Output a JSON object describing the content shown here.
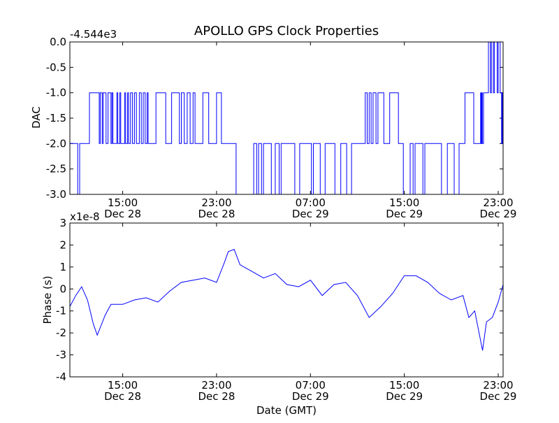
{
  "title": "APOLLO GPS Clock Properties",
  "chart_data": [
    {
      "type": "line",
      "ylabel": "DAC",
      "xlabel": "",
      "offset_label": "-4.544e3",
      "ylim": [
        -3.0,
        0.0
      ],
      "yticks": [
        {
          "v": 0.0,
          "label": "0.0"
        },
        {
          "v": -0.5,
          "label": "-0.5"
        },
        {
          "v": -1.0,
          "label": "-1.0"
        },
        {
          "v": -1.5,
          "label": "-1.5"
        },
        {
          "v": -2.0,
          "label": "-2.0"
        },
        {
          "v": -2.5,
          "label": "-2.5"
        },
        {
          "v": -3.0,
          "label": "-3.0"
        }
      ],
      "xticks": [
        {
          "t": "Dec 28 15:00",
          "time": "15:00",
          "date": "Dec 28"
        },
        {
          "t": "Dec 28 23:00",
          "time": "23:00",
          "date": "Dec 28"
        },
        {
          "t": "Dec 29 07:00",
          "time": "07:00",
          "date": "Dec 29"
        },
        {
          "t": "Dec 29 15:00",
          "time": "15:00",
          "date": "Dec 29"
        },
        {
          "t": "Dec 29 23:00",
          "time": "23:00",
          "date": "Dec 29"
        }
      ],
      "xlim": [
        "Dec 28 10:30",
        "Dec 29 23:25"
      ],
      "series": [
        {
          "color": "#0000ff",
          "points": [
            [
              "Dec 28 10:30",
              -2.0
            ],
            [
              "Dec 28 11:00",
              -2.0
            ],
            [
              "Dec 28 11:10",
              -3.0
            ],
            [
              "Dec 28 11:20",
              -2.0
            ],
            [
              "Dec 28 12:00",
              -2.0
            ],
            [
              "Dec 28 12:10",
              -1.0
            ],
            [
              "Dec 28 12:50",
              -1.0
            ],
            [
              "Dec 28 13:00",
              -2.0
            ],
            [
              "Dec 28 13:05",
              -1.0
            ],
            [
              "Dec 28 13:15",
              -2.0
            ],
            [
              "Dec 28 13:20",
              -1.0
            ],
            [
              "Dec 28 13:35",
              -2.0
            ],
            [
              "Dec 28 13:45",
              -1.0
            ],
            [
              "Dec 28 14:00",
              -2.0
            ],
            [
              "Dec 28 14:05",
              -1.0
            ],
            [
              "Dec 28 14:10",
              -2.0
            ],
            [
              "Dec 28 14:30",
              -1.0
            ],
            [
              "Dec 28 14:35",
              -2.0
            ],
            [
              "Dec 28 14:45",
              -1.0
            ],
            [
              "Dec 28 14:50",
              -2.0
            ],
            [
              "Dec 28 15:10",
              -1.0
            ],
            [
              "Dec 28 15:15",
              -2.0
            ],
            [
              "Dec 28 15:25",
              -1.0
            ],
            [
              "Dec 28 15:30",
              -2.0
            ],
            [
              "Dec 28 15:40",
              -1.0
            ],
            [
              "Dec 28 15:50",
              -2.0
            ],
            [
              "Dec 28 16:00",
              -1.0
            ],
            [
              "Dec 28 16:10",
              -2.0
            ],
            [
              "Dec 28 16:25",
              -1.0
            ],
            [
              "Dec 28 16:35",
              -2.0
            ],
            [
              "Dec 28 16:45",
              -1.0
            ],
            [
              "Dec 28 16:55",
              -2.0
            ],
            [
              "Dec 28 17:05",
              -1.0
            ],
            [
              "Dec 28 17:10",
              -2.0
            ],
            [
              "Dec 28 17:40",
              -2.0
            ],
            [
              "Dec 28 17:50",
              -1.0
            ],
            [
              "Dec 28 18:30",
              -1.0
            ],
            [
              "Dec 28 18:40",
              -2.0
            ],
            [
              "Dec 28 19:00",
              -2.0
            ],
            [
              "Dec 28 19:10",
              -1.0
            ],
            [
              "Dec 28 19:40",
              -1.0
            ],
            [
              "Dec 28 19:50",
              -2.0
            ],
            [
              "Dec 28 20:00",
              -1.0
            ],
            [
              "Dec 28 20:15",
              -2.0
            ],
            [
              "Dec 28 20:30",
              -1.0
            ],
            [
              "Dec 28 20:45",
              -2.0
            ],
            [
              "Dec 28 21:00",
              -1.0
            ],
            [
              "Dec 28 21:10",
              -2.0
            ],
            [
              "Dec 28 21:40",
              -2.0
            ],
            [
              "Dec 28 21:50",
              -1.0
            ],
            [
              "Dec 28 22:10",
              -1.0
            ],
            [
              "Dec 28 22:20",
              -2.0
            ],
            [
              "Dec 28 22:50",
              -2.0
            ],
            [
              "Dec 28 23:00",
              -1.0
            ],
            [
              "Dec 28 23:15",
              -1.0
            ],
            [
              "Dec 28 23:25",
              -2.0
            ],
            [
              "Dec 29 00:30",
              -2.0
            ],
            [
              "Dec 29 00:40",
              -3.0
            ],
            [
              "Dec 29 02:00",
              -3.0
            ],
            [
              "Dec 29 02:10",
              -2.0
            ],
            [
              "Dec 29 02:25",
              -3.0
            ],
            [
              "Dec 29 02:35",
              -2.0
            ],
            [
              "Dec 29 02:50",
              -3.0
            ],
            [
              "Dec 29 03:00",
              -2.0
            ],
            [
              "Dec 29 03:30",
              -2.0
            ],
            [
              "Dec 29 03:40",
              -3.0
            ],
            [
              "Dec 29 04:00",
              -2.0
            ],
            [
              "Dec 29 04:20",
              -3.0
            ],
            [
              "Dec 29 04:30",
              -2.0
            ],
            [
              "Dec 29 05:30",
              -2.0
            ],
            [
              "Dec 29 05:40",
              -3.0
            ],
            [
              "Dec 29 05:55",
              -3.0
            ],
            [
              "Dec 29 06:05",
              -2.0
            ],
            [
              "Dec 29 06:55",
              -2.0
            ],
            [
              "Dec 29 07:05",
              -3.0
            ],
            [
              "Dec 29 07:15",
              -2.0
            ],
            [
              "Dec 29 07:40",
              -2.0
            ],
            [
              "Dec 29 07:50",
              -3.0
            ],
            [
              "Dec 29 08:05",
              -3.0
            ],
            [
              "Dec 29 08:15",
              -2.0
            ],
            [
              "Dec 29 08:55",
              -2.0
            ],
            [
              "Dec 29 09:05",
              -3.0
            ],
            [
              "Dec 29 09:25",
              -3.0
            ],
            [
              "Dec 29 09:35",
              -2.0
            ],
            [
              "Dec 29 09:55",
              -2.0
            ],
            [
              "Dec 29 10:05",
              -3.0
            ],
            [
              "Dec 29 10:20",
              -3.0
            ],
            [
              "Dec 29 10:30",
              -2.0
            ],
            [
              "Dec 29 11:30",
              -2.0
            ],
            [
              "Dec 29 11:40",
              -1.0
            ],
            [
              "Dec 29 11:50",
              -2.0
            ],
            [
              "Dec 29 12:00",
              -1.0
            ],
            [
              "Dec 29 12:10",
              -2.0
            ],
            [
              "Dec 29 12:20",
              -1.0
            ],
            [
              "Dec 29 12:35",
              -2.0
            ],
            [
              "Dec 29 12:45",
              -1.0
            ],
            [
              "Dec 29 13:05",
              -1.0
            ],
            [
              "Dec 29 13:15",
              -2.0
            ],
            [
              "Dec 29 13:35",
              -2.0
            ],
            [
              "Dec 29 13:45",
              -1.0
            ],
            [
              "Dec 29 14:20",
              -1.0
            ],
            [
              "Dec 29 14:30",
              -2.0
            ],
            [
              "Dec 29 14:45",
              -2.0
            ],
            [
              "Dec 29 14:55",
              -3.0
            ],
            [
              "Dec 29 15:20",
              -3.0
            ],
            [
              "Dec 29 15:30",
              -2.0
            ],
            [
              "Dec 29 15:45",
              -3.0
            ],
            [
              "Dec 29 15:55",
              -2.0
            ],
            [
              "Dec 29 16:25",
              -2.0
            ],
            [
              "Dec 29 16:35",
              -3.0
            ],
            [
              "Dec 29 16:45",
              -2.0
            ],
            [
              "Dec 29 18:00",
              -2.0
            ],
            [
              "Dec 29 18:10",
              -3.0
            ],
            [
              "Dec 29 18:30",
              -3.0
            ],
            [
              "Dec 29 18:40",
              -2.0
            ],
            [
              "Dec 29 19:05",
              -2.0
            ],
            [
              "Dec 29 19:15",
              -3.0
            ],
            [
              "Dec 29 19:30",
              -3.0
            ],
            [
              "Dec 29 19:40",
              -2.0
            ],
            [
              "Dec 29 20:00",
              -2.0
            ],
            [
              "Dec 29 20:10",
              -1.0
            ],
            [
              "Dec 29 20:45",
              -1.0
            ],
            [
              "Dec 29 20:55",
              -2.0
            ],
            [
              "Dec 29 21:25",
              -2.0
            ],
            [
              "Dec 29 21:30",
              -1.0
            ],
            [
              "Dec 29 21:33",
              -2.0
            ],
            [
              "Dec 29 21:36",
              -1.0
            ],
            [
              "Dec 29 21:39",
              -2.0
            ],
            [
              "Dec 29 21:45",
              -1.0
            ],
            [
              "Dec 29 22:05",
              -1.0
            ],
            [
              "Dec 29 22:10",
              0.0
            ],
            [
              "Dec 29 22:20",
              -1.0
            ],
            [
              "Dec 29 22:25",
              0.0
            ],
            [
              "Dec 29 22:35",
              -1.0
            ],
            [
              "Dec 29 22:40",
              0.0
            ],
            [
              "Dec 29 22:50",
              0.0
            ],
            [
              "Dec 29 22:55",
              -1.0
            ],
            [
              "Dec 29 23:00",
              0.0
            ],
            [
              "Dec 29 23:10",
              -1.0
            ],
            [
              "Dec 29 23:15",
              -1.0
            ],
            [
              "Dec 29 23:17",
              -2.0
            ],
            [
              "Dec 29 23:19",
              -1.0
            ],
            [
              "Dec 29 23:21",
              -2.0
            ],
            [
              "Dec 29 23:23",
              -1.0
            ],
            [
              "Dec 29 23:25",
              -2.0
            ]
          ]
        }
      ]
    },
    {
      "type": "line",
      "ylabel": "Phase (s)",
      "xlabel": "Date (GMT)",
      "offset_label": "x1e-8",
      "ylim": [
        -4,
        3
      ],
      "yticks": [
        {
          "v": 3,
          "label": "3"
        },
        {
          "v": 2,
          "label": "2"
        },
        {
          "v": 1,
          "label": "1"
        },
        {
          "v": 0,
          "label": "0"
        },
        {
          "v": -1,
          "label": "-1"
        },
        {
          "v": -2,
          "label": "-2"
        },
        {
          "v": -3,
          "label": "-3"
        },
        {
          "v": -4,
          "label": "-4"
        }
      ],
      "xticks": [
        {
          "t": "Dec 28 15:00",
          "time": "15:00",
          "date": "Dec 28"
        },
        {
          "t": "Dec 28 23:00",
          "time": "23:00",
          "date": "Dec 28"
        },
        {
          "t": "Dec 29 07:00",
          "time": "07:00",
          "date": "Dec 29"
        },
        {
          "t": "Dec 29 15:00",
          "time": "15:00",
          "date": "Dec 29"
        },
        {
          "t": "Dec 29 23:00",
          "time": "23:00",
          "date": "Dec 29"
        }
      ],
      "xlim": [
        "Dec 28 10:30",
        "Dec 29 23:25"
      ],
      "series": [
        {
          "color": "#0000ff",
          "points": [
            [
              "Dec 28 10:30",
              -0.8
            ],
            [
              "Dec 28 11:00",
              -0.3
            ],
            [
              "Dec 28 11:30",
              0.1
            ],
            [
              "Dec 28 12:00",
              -0.5
            ],
            [
              "Dec 28 12:30",
              -1.6
            ],
            [
              "Dec 28 12:50",
              -2.1
            ],
            [
              "Dec 28 13:30",
              -1.2
            ],
            [
              "Dec 28 14:00",
              -0.7
            ],
            [
              "Dec 28 15:00",
              -0.7
            ],
            [
              "Dec 28 16:00",
              -0.5
            ],
            [
              "Dec 28 17:00",
              -0.4
            ],
            [
              "Dec 28 18:00",
              -0.6
            ],
            [
              "Dec 28 19:00",
              -0.1
            ],
            [
              "Dec 28 20:00",
              0.3
            ],
            [
              "Dec 28 21:00",
              0.4
            ],
            [
              "Dec 28 22:00",
              0.5
            ],
            [
              "Dec 28 23:00",
              0.3
            ],
            [
              "Dec 28 23:40",
              1.2
            ],
            [
              "Dec 29 00:00",
              1.7
            ],
            [
              "Dec 29 00:30",
              1.8
            ],
            [
              "Dec 29 01:00",
              1.1
            ],
            [
              "Dec 29 02:00",
              0.8
            ],
            [
              "Dec 29 03:00",
              0.5
            ],
            [
              "Dec 29 04:00",
              0.7
            ],
            [
              "Dec 29 05:00",
              0.2
            ],
            [
              "Dec 29 06:00",
              0.1
            ],
            [
              "Dec 29 07:00",
              0.4
            ],
            [
              "Dec 29 08:00",
              -0.3
            ],
            [
              "Dec 29 09:00",
              0.2
            ],
            [
              "Dec 29 10:00",
              0.3
            ],
            [
              "Dec 29 11:00",
              -0.3
            ],
            [
              "Dec 29 12:00",
              -1.3
            ],
            [
              "Dec 29 13:00",
              -0.8
            ],
            [
              "Dec 29 14:00",
              -0.2
            ],
            [
              "Dec 29 15:00",
              0.6
            ],
            [
              "Dec 29 16:00",
              0.6
            ],
            [
              "Dec 29 17:00",
              0.3
            ],
            [
              "Dec 29 18:00",
              -0.2
            ],
            [
              "Dec 29 19:00",
              -0.5
            ],
            [
              "Dec 29 20:00",
              -0.3
            ],
            [
              "Dec 29 20:30",
              -1.3
            ],
            [
              "Dec 29 21:00",
              -1.0
            ],
            [
              "Dec 29 21:40",
              -2.8
            ],
            [
              "Dec 29 22:00",
              -1.5
            ],
            [
              "Dec 29 22:30",
              -1.3
            ],
            [
              "Dec 29 23:00",
              -0.6
            ],
            [
              "Dec 29 23:25",
              0.2
            ]
          ]
        }
      ]
    }
  ]
}
